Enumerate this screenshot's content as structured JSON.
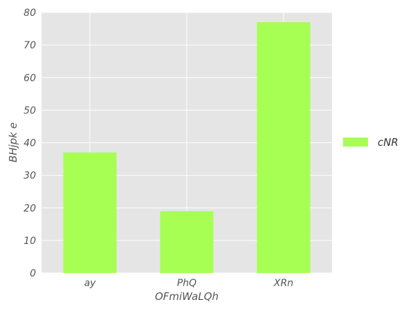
{
  "chart_data": {
    "type": "bar",
    "categories": [
      "ay",
      "PhQ",
      "XRn"
    ],
    "series": [
      {
        "name": "cNR",
        "values": [
          37,
          19,
          77
        ]
      }
    ],
    "xlabel": "OFmiWaLQh",
    "ylabel": "BHjpk e",
    "ylim": [
      0,
      80
    ],
    "yticks": [
      0,
      10,
      20,
      30,
      40,
      50,
      60,
      70,
      80
    ],
    "grid": true,
    "legend_position": "right"
  },
  "colors": {
    "bar": "#a6ff52",
    "plot_background": "#e5e5e5",
    "grid": "#ffffff"
  }
}
